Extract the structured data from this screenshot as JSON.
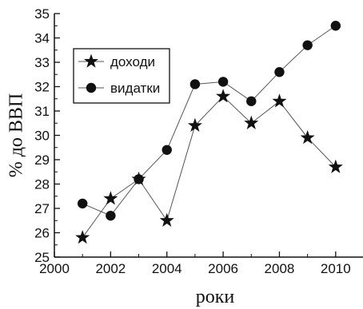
{
  "chart_data": {
    "type": "line",
    "xlabel": "роки",
    "ylabel": "% до ВВП",
    "xlim": [
      2000,
      2011
    ],
    "ylim": [
      25,
      35
    ],
    "x_ticks": [
      2000,
      2002,
      2004,
      2006,
      2008,
      2010
    ],
    "y_ticks": [
      25,
      26,
      27,
      28,
      29,
      30,
      31,
      32,
      33,
      34,
      35
    ],
    "legend_position": "top-left",
    "grid": false,
    "series": [
      {
        "name": "доходи",
        "marker": "star",
        "color": "#111111",
        "x": [
          2001,
          2002,
          2003,
          2004,
          2005,
          2006,
          2007,
          2008,
          2009,
          2010
        ],
        "values": [
          25.8,
          27.4,
          28.2,
          26.5,
          30.4,
          31.6,
          30.5,
          31.4,
          29.9,
          28.7
        ]
      },
      {
        "name": "видатки",
        "marker": "circle",
        "color": "#111111",
        "x": [
          2001,
          2002,
          2003,
          2004,
          2005,
          2006,
          2007,
          2008,
          2009,
          2010
        ],
        "values": [
          27.2,
          26.7,
          28.2,
          29.4,
          32.1,
          32.2,
          31.4,
          32.6,
          33.7,
          34.5
        ]
      }
    ]
  }
}
